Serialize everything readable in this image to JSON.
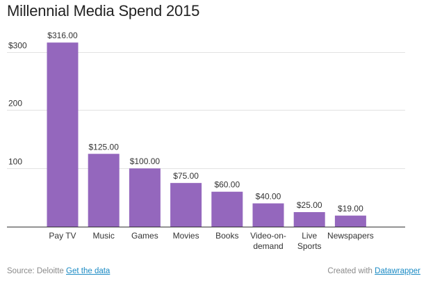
{
  "chart_data": {
    "type": "bar",
    "title": "Millennial Media Spend 2015",
    "categories": [
      "Pay TV",
      "Music",
      "Games",
      "Movies",
      "Books",
      "Video-on-demand",
      "Live Sports",
      "Newspapers"
    ],
    "category_label_lines": [
      [
        "Pay TV"
      ],
      [
        "Music"
      ],
      [
        "Games"
      ],
      [
        "Movies"
      ],
      [
        "Books"
      ],
      [
        "Video-on-",
        "demand"
      ],
      [
        "Live",
        "Sports"
      ],
      [
        "Newspapers"
      ]
    ],
    "values": [
      316,
      125,
      100,
      75,
      60,
      40,
      25,
      19
    ],
    "value_labels": [
      "$316.00",
      "$125.00",
      "$100.00",
      "$75.00",
      "$60.00",
      "$40.00",
      "$25.00",
      "$19.00"
    ],
    "y_ticks": [
      100,
      200,
      300
    ],
    "y_tick_labels": [
      "100",
      "200",
      "$300"
    ],
    "ylim": [
      0,
      316
    ],
    "xlabel": "",
    "ylabel": "",
    "grid": true,
    "legend": "none",
    "bar_color": "#9467bd"
  },
  "footer": {
    "source_text": "Source: Deloitte",
    "get_data_link": "Get the data",
    "created_with": "Created with",
    "datawrapper_link": "Datawrapper"
  }
}
